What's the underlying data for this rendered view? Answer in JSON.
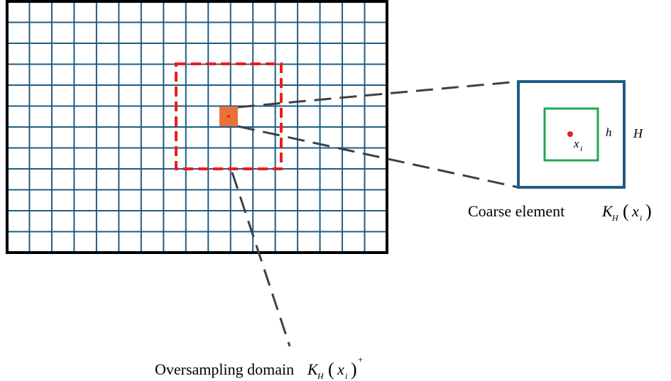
{
  "colors": {
    "grid_line": "#1f5c84",
    "grid_border": "#000000",
    "oversampling_box": "#ee1c1c",
    "coarse_cell_fill": "#e8733a",
    "center_point": "#ee1c1c",
    "coarse_element_border": "#1f5c84",
    "fine_element_border": "#1faa4e",
    "leader_line": "#404040"
  },
  "grid": {
    "columns": 17,
    "rows": 12
  },
  "labels": {
    "coarse_element": {
      "prefix": "Coarse element",
      "K": "K",
      "H": "H",
      "paren_open": "(",
      "x": "x",
      "i": "i",
      "paren_close": ")"
    },
    "oversampling_domain": {
      "prefix": "Oversampling domain",
      "K": "K",
      "H": "H",
      "paren_open": "(",
      "x": "x",
      "i": "i",
      "paren_close": ")",
      "plus": "+"
    },
    "point": {
      "x": "x",
      "i": "i"
    },
    "fine_size": "h",
    "coarse_size": "H"
  }
}
